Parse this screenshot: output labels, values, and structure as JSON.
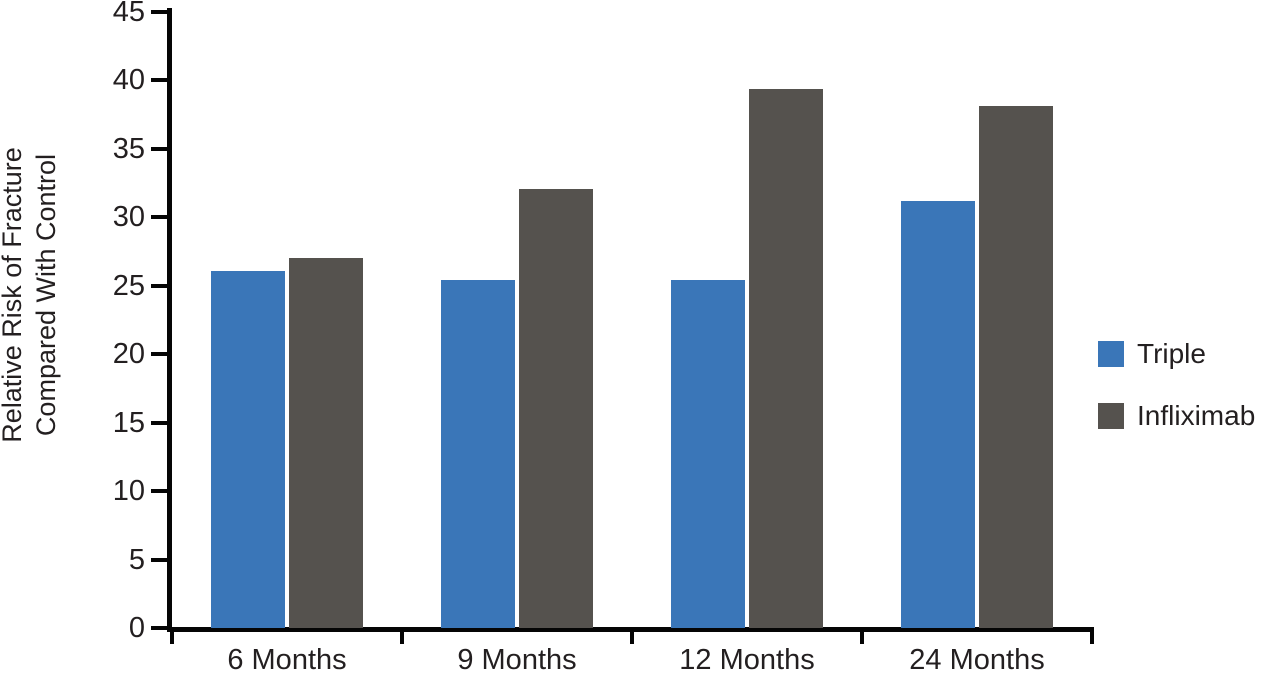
{
  "chart_data": {
    "type": "bar",
    "categories": [
      "6 Months",
      "9 Months",
      "12 Months",
      "24 Months"
    ],
    "series": [
      {
        "name": "Triple",
        "color": "#3A76B8",
        "values": [
          26.1,
          25.4,
          25.4,
          31.2
        ]
      },
      {
        "name": "Infliximab",
        "color": "#55524E",
        "values": [
          27.0,
          32.1,
          39.4,
          38.1
        ]
      }
    ],
    "title": "",
    "xlabel": "",
    "ylabel": "Relative Risk of Fracture Compared With Control",
    "ylabel_lines": [
      "Relative Risk of Fracture",
      "Compared With Control"
    ],
    "ylim": [
      0,
      45
    ],
    "ytick_step": 5,
    "grid": false,
    "legend_position": "right",
    "axis_color": "#050505",
    "text_color": "#231f20"
  }
}
